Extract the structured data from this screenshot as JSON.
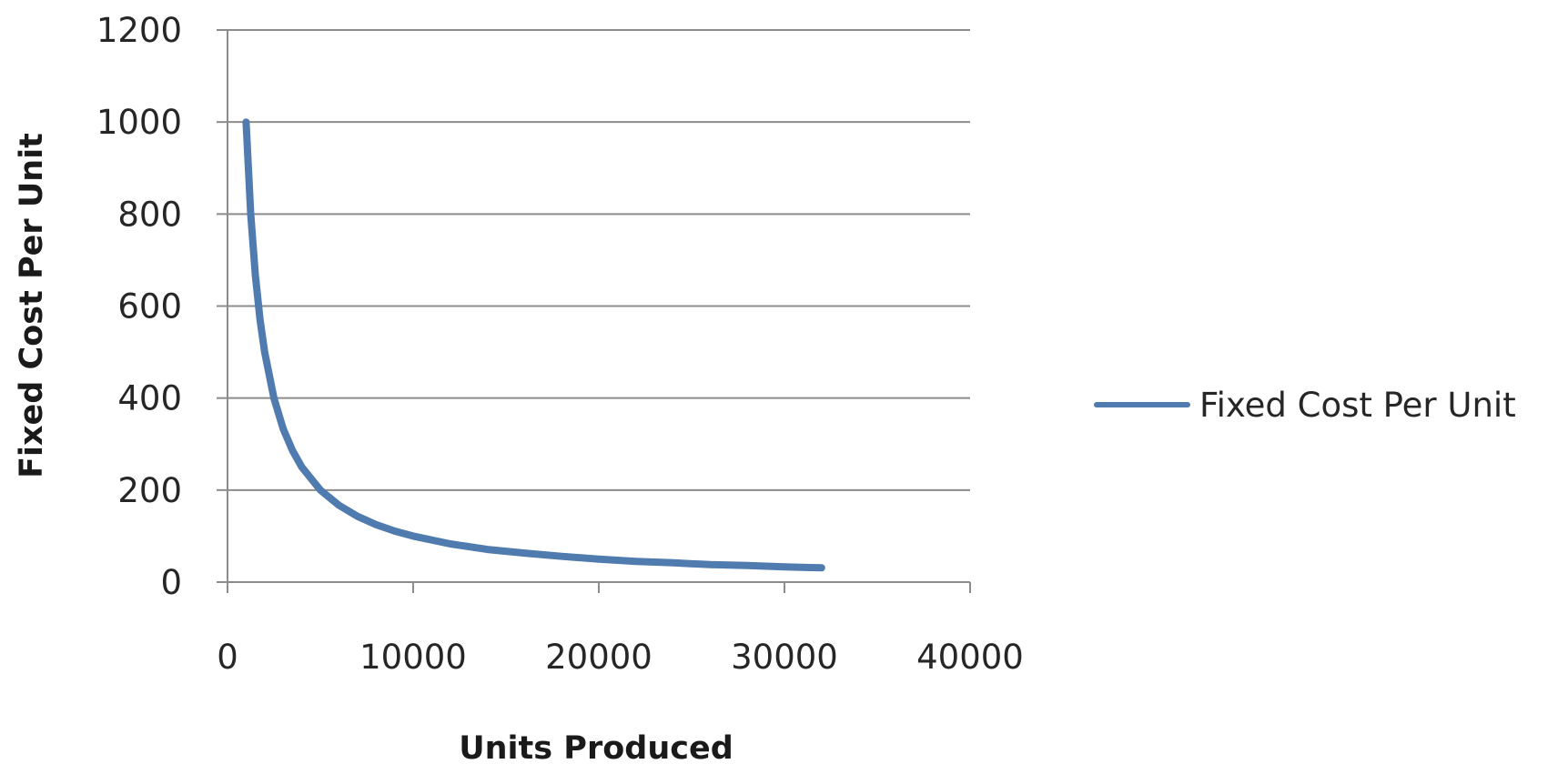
{
  "chart_data": {
    "type": "line",
    "title": "",
    "xlabel": "Units Produced",
    "ylabel": "Fixed Cost  Per Unit",
    "xlim": [
      0,
      40000
    ],
    "ylim": [
      0,
      1200
    ],
    "xticks": [
      0,
      10000,
      20000,
      30000,
      40000
    ],
    "yticks": [
      0,
      200,
      400,
      600,
      800,
      1000,
      1200
    ],
    "grid": "horizontal",
    "legend_position": "right",
    "series": [
      {
        "name": "Fixed Cost Per Unit",
        "color": "#4F7BAF",
        "x": [
          1000,
          1250,
          1500,
          1750,
          2000,
          2500,
          3000,
          3500,
          4000,
          5000,
          6000,
          7000,
          8000,
          9000,
          10000,
          12000,
          14000,
          16000,
          18000,
          20000,
          22000,
          24000,
          26000,
          28000,
          30000,
          32000
        ],
        "y": [
          1000,
          800,
          667,
          571,
          500,
          400,
          333,
          286,
          250,
          200,
          167,
          143,
          125,
          111,
          100,
          83,
          71,
          63,
          56,
          50,
          45,
          42,
          38,
          36,
          33,
          31
        ]
      }
    ]
  }
}
